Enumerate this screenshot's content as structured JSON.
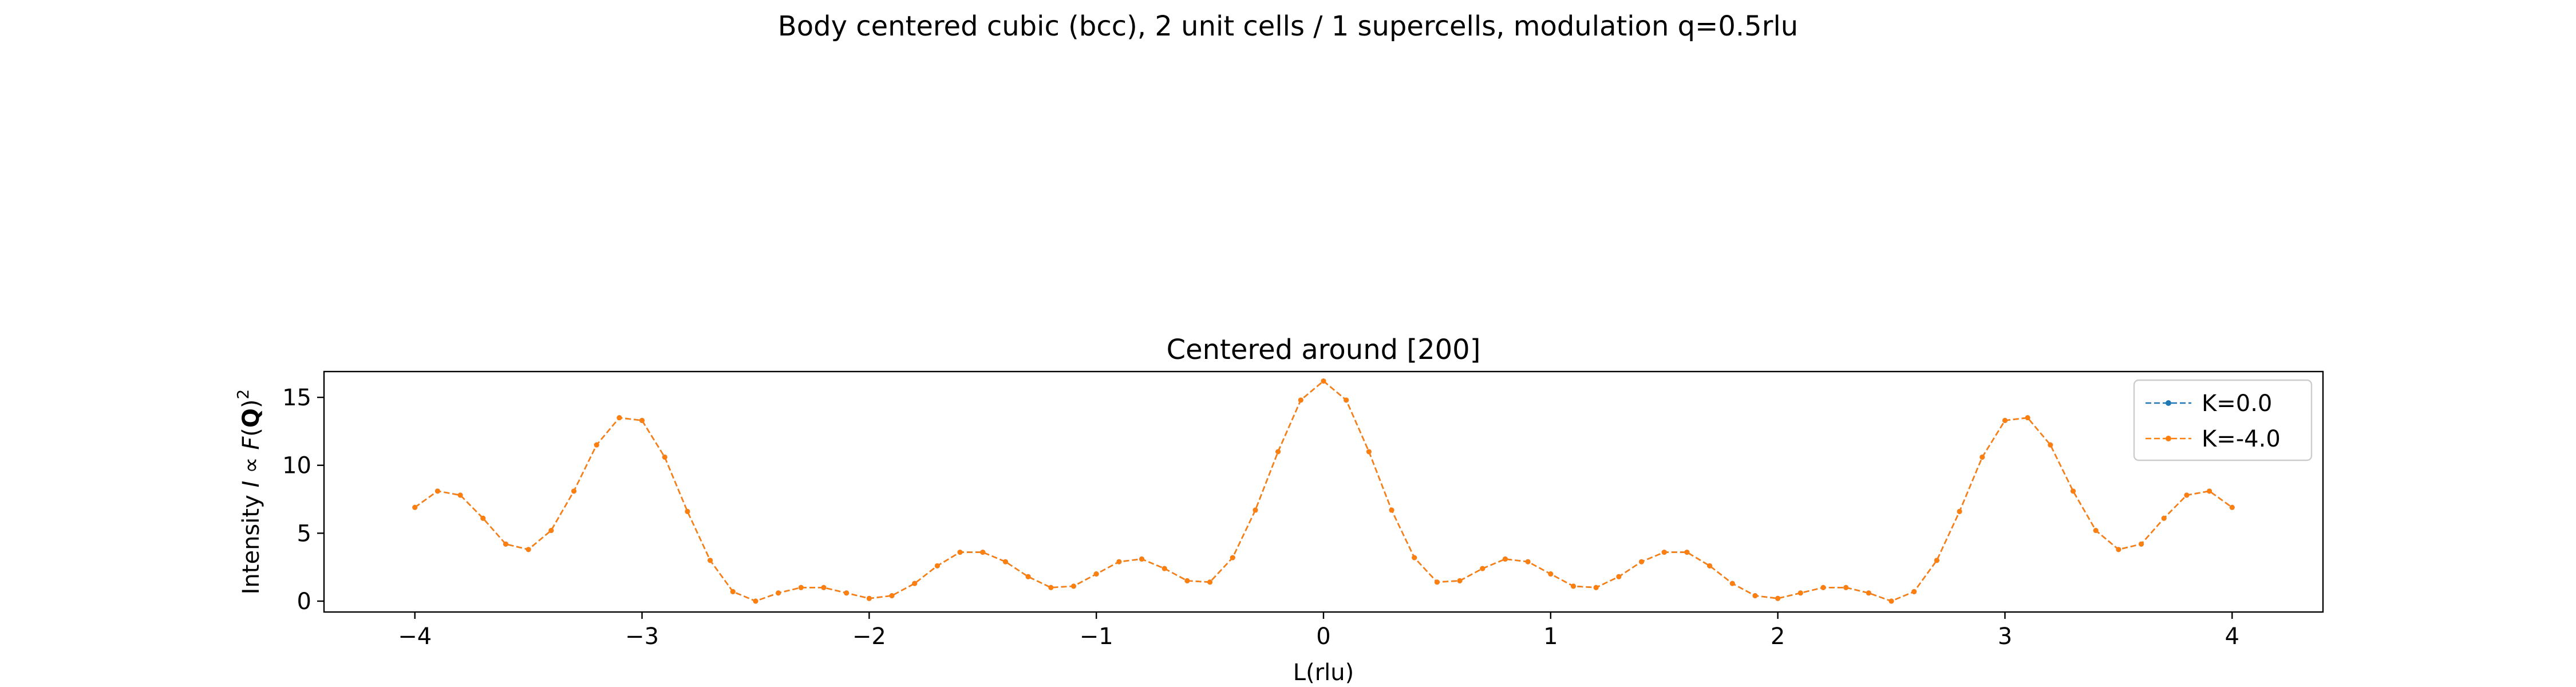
{
  "figure": {
    "suptitle": "Body centered cubic (bcc), 2 unit cells / 1 supercells, modulation q=0.5rlu"
  },
  "chart_data": {
    "type": "line",
    "title": "Centered around [200]",
    "xlabel": "L(rlu)",
    "ylabel": "Intensity I ∝ F(Q)²",
    "ylabel_parts": [
      "Intensity ",
      "I",
      " ∝ ",
      "F",
      "(",
      "Q",
      ")",
      "2"
    ],
    "xlim": [
      -4.4,
      4.4
    ],
    "ylim": [
      -0.8,
      16.9
    ],
    "xticks": [
      -4,
      -3,
      -2,
      -1,
      0,
      1,
      2,
      3,
      4
    ],
    "xtick_labels": [
      "−4",
      "−3",
      "−2",
      "−1",
      "0",
      "1",
      "2",
      "3",
      "4"
    ],
    "yticks": [
      0,
      5,
      10,
      15
    ],
    "ytick_labels": [
      "0",
      "5",
      "10",
      "15"
    ],
    "grid": false,
    "legend_position": "top-right",
    "x": [
      -4.0,
      -3.9,
      -3.8,
      -3.7,
      -3.6,
      -3.5,
      -3.4,
      -3.3,
      -3.2,
      -3.1,
      -3.0,
      -2.9,
      -2.8,
      -2.7,
      -2.6,
      -2.5,
      -2.4,
      -2.3,
      -2.2,
      -2.1,
      -2.0,
      -1.9,
      -1.8,
      -1.7,
      -1.6,
      -1.5,
      -1.4,
      -1.3,
      -1.2,
      -1.1,
      -1.0,
      -0.9,
      -0.8,
      -0.7,
      -0.6,
      -0.5,
      -0.4,
      -0.3,
      -0.2,
      -0.1,
      0.0,
      0.1,
      0.2,
      0.3,
      0.4,
      0.5,
      0.6,
      0.7,
      0.8,
      0.9,
      1.0,
      1.1,
      1.2,
      1.3,
      1.4,
      1.5,
      1.6,
      1.7,
      1.8,
      1.9,
      2.0,
      2.1,
      2.2,
      2.3,
      2.4,
      2.5,
      2.6,
      2.7,
      2.8,
      2.9,
      3.0,
      3.1,
      3.2,
      3.3,
      3.4,
      3.5,
      3.6,
      3.7,
      3.8,
      3.9,
      4.0
    ],
    "series": [
      {
        "name": "K=0.0",
        "color": "#1f77b4",
        "values": [
          6.9,
          8.1,
          7.8,
          6.1,
          4.2,
          3.8,
          5.2,
          8.1,
          11.5,
          13.5,
          13.3,
          10.6,
          6.6,
          3.0,
          0.7,
          0.0,
          0.6,
          1.0,
          1.0,
          0.6,
          0.2,
          0.4,
          1.3,
          2.6,
          3.6,
          3.6,
          2.9,
          1.8,
          1.0,
          1.1,
          2.0,
          2.9,
          3.1,
          2.4,
          1.5,
          1.4,
          3.2,
          6.7,
          11.0,
          14.8,
          16.2,
          14.8,
          11.0,
          6.7,
          3.2,
          1.4,
          1.5,
          2.4,
          3.1,
          2.9,
          2.0,
          1.1,
          1.0,
          1.8,
          2.9,
          3.6,
          3.6,
          2.6,
          1.3,
          0.4,
          0.2,
          0.6,
          1.0,
          1.0,
          0.6,
          0.0,
          0.7,
          3.0,
          6.6,
          10.6,
          13.3,
          13.5,
          11.5,
          8.1,
          5.2,
          3.8,
          4.2,
          6.1,
          7.8,
          8.1,
          6.9
        ]
      },
      {
        "name": "K=-4.0",
        "color": "#ff7f0e",
        "values": [
          6.9,
          8.1,
          7.8,
          6.1,
          4.2,
          3.8,
          5.2,
          8.1,
          11.5,
          13.5,
          13.3,
          10.6,
          6.6,
          3.0,
          0.7,
          0.0,
          0.6,
          1.0,
          1.0,
          0.6,
          0.2,
          0.4,
          1.3,
          2.6,
          3.6,
          3.6,
          2.9,
          1.8,
          1.0,
          1.1,
          2.0,
          2.9,
          3.1,
          2.4,
          1.5,
          1.4,
          3.2,
          6.7,
          11.0,
          14.8,
          16.2,
          14.8,
          11.0,
          6.7,
          3.2,
          1.4,
          1.5,
          2.4,
          3.1,
          2.9,
          2.0,
          1.1,
          1.0,
          1.8,
          2.9,
          3.6,
          3.6,
          2.6,
          1.3,
          0.4,
          0.2,
          0.6,
          1.0,
          1.0,
          0.6,
          0.0,
          0.7,
          3.0,
          6.6,
          10.6,
          13.3,
          13.5,
          11.5,
          8.1,
          5.2,
          3.8,
          4.2,
          6.1,
          7.8,
          8.1,
          6.9
        ]
      }
    ]
  }
}
